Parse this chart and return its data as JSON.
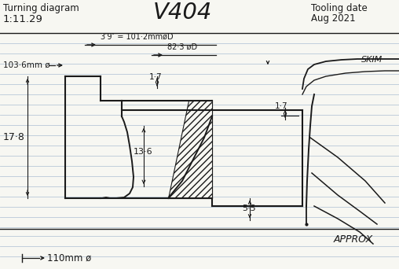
{
  "title": "V404",
  "subtitle_left": "Turning diagram",
  "ratio": "1:11.29",
  "tooling_date_line1": "Tooling date",
  "tooling_date_line2": "Aug 2021",
  "dim_3_9": "3′9″ = 101·2mmøD",
  "dim_82": "82·3 øD",
  "dim_103": "103·6mm ø",
  "dim_17_8": "17·8",
  "dim_13_6": "13·6",
  "dim_1_7a": "1·7",
  "dim_1_7b": "1·7",
  "dim_5_5": "5·5",
  "dim_110": "110mm ø",
  "skim": "SKIM",
  "approx": "APPROX",
  "bg_color": "#f7f7f2",
  "line_color": "#1a1a1a",
  "ruled_line_color": "#b8c8d8"
}
